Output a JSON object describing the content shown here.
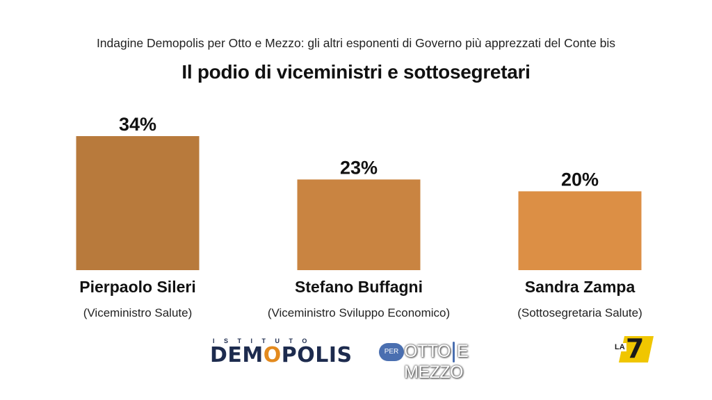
{
  "header": {
    "subtitle": "Indagine Demopolis per Otto e Mezzo: gli altri esponenti di Governo più apprezzati del Conte bis",
    "title": "Il podio di viceministri e sottosegretari"
  },
  "chart_data": {
    "type": "bar",
    "categories": [
      "Pierpaolo Sileri",
      "Stefano Buffagni",
      "Sandra Zampa"
    ],
    "roles": [
      "(Viceministro Salute)",
      "(Viceministro Sviluppo Economico)",
      "(Sottosegretaria Salute)"
    ],
    "values": [
      34,
      23,
      20
    ],
    "value_labels": [
      "34%",
      "23%",
      "20%"
    ],
    "colors": [
      "#b87a3c",
      "#c98441",
      "#dc8f45"
    ],
    "ylim": [
      0,
      34
    ],
    "grid": false,
    "legend": "none"
  },
  "footer": {
    "demopolis_top": "ISTITUTO",
    "demopolis_brand_a": "DEM",
    "demopolis_brand_o": "O",
    "demopolis_brand_b": "POLIS",
    "per": "PER",
    "otto": "OTTO",
    "emezzo": "E MEZZO",
    "la": "LA",
    "seven": "7"
  }
}
